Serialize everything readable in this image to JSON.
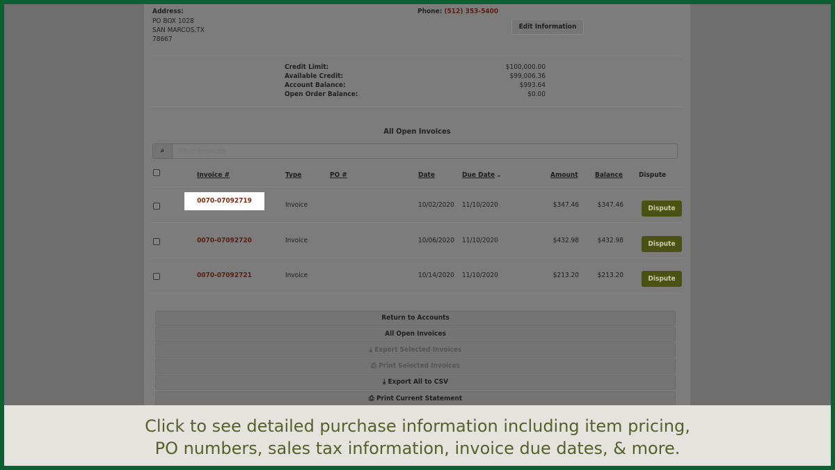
{
  "address": {
    "label": "Address:",
    "lines": [
      "PO BOX 1028",
      "SAN MARCOS,TX",
      "78667"
    ]
  },
  "phone": {
    "label": "Phone:",
    "value": "(512) 353-5400"
  },
  "edit_button": "Edit Information",
  "summary": [
    {
      "label": "Credit Limit:",
      "value": "$100,000.00"
    },
    {
      "label": "Available Credit:",
      "value": "$99,006.36"
    },
    {
      "label": "Account Balance:",
      "value": "$993.64"
    },
    {
      "label": "Open Order Balance:",
      "value": "$0.00"
    }
  ],
  "section_title": "All Open Invoices",
  "filter": {
    "placeholder": "Filter Invoices",
    "icon": "search-icon"
  },
  "columns": [
    "Invoice #",
    "Type",
    "PO #",
    "Date",
    "Due Date",
    "Amount",
    "Balance",
    "Dispute"
  ],
  "invoices": [
    {
      "invoice": "0070-07092719",
      "type": "Invoice",
      "po": "",
      "date": "10/02/2020",
      "due": "11/10/2020",
      "amount": "$347.46",
      "balance": "$347.46",
      "action": "Dispute",
      "highlighted": true
    },
    {
      "invoice": "0070-07092720",
      "type": "Invoice",
      "po": "",
      "date": "10/06/2020",
      "due": "11/10/2020",
      "amount": "$432.98",
      "balance": "$432.98",
      "action": "Dispute"
    },
    {
      "invoice": "0070-07092721",
      "type": "Invoice",
      "po": "",
      "date": "10/14/2020",
      "due": "11/10/2020",
      "amount": "$213.20",
      "balance": "$213.20",
      "action": "Dispute"
    }
  ],
  "actions": [
    {
      "label": "Return to Accounts",
      "icon": "",
      "enabled": true
    },
    {
      "label": "All Open Invoices",
      "icon": "",
      "enabled": true
    },
    {
      "label": "Export Selected Invoices",
      "icon": "download-icon",
      "enabled": false
    },
    {
      "label": "Print Selected Invoices",
      "icon": "print-icon",
      "enabled": false
    },
    {
      "label": "Export All to CSV",
      "icon": "download-icon",
      "enabled": true
    },
    {
      "label": "Print Current Statement",
      "icon": "print-icon",
      "enabled": true
    }
  ],
  "caption": [
    "Click to see detailed purchase information including item pricing,",
    "PO numbers, sales tax information, invoice due dates, & more."
  ],
  "colors": {
    "frame": "#0b5f30",
    "link": "#5a1e10",
    "dispute": "#4a5213",
    "caption_text": "#56612a"
  }
}
